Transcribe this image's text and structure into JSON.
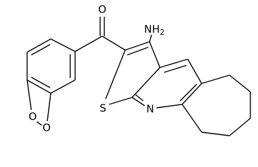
{
  "atoms": [
    {
      "label": "O"
    },
    {
      "label": "NH",
      "subscript": "2"
    },
    {
      "label": "S"
    },
    {
      "label": "N"
    },
    {
      "label": "O"
    },
    {
      "label": "O"
    }
  ]
}
